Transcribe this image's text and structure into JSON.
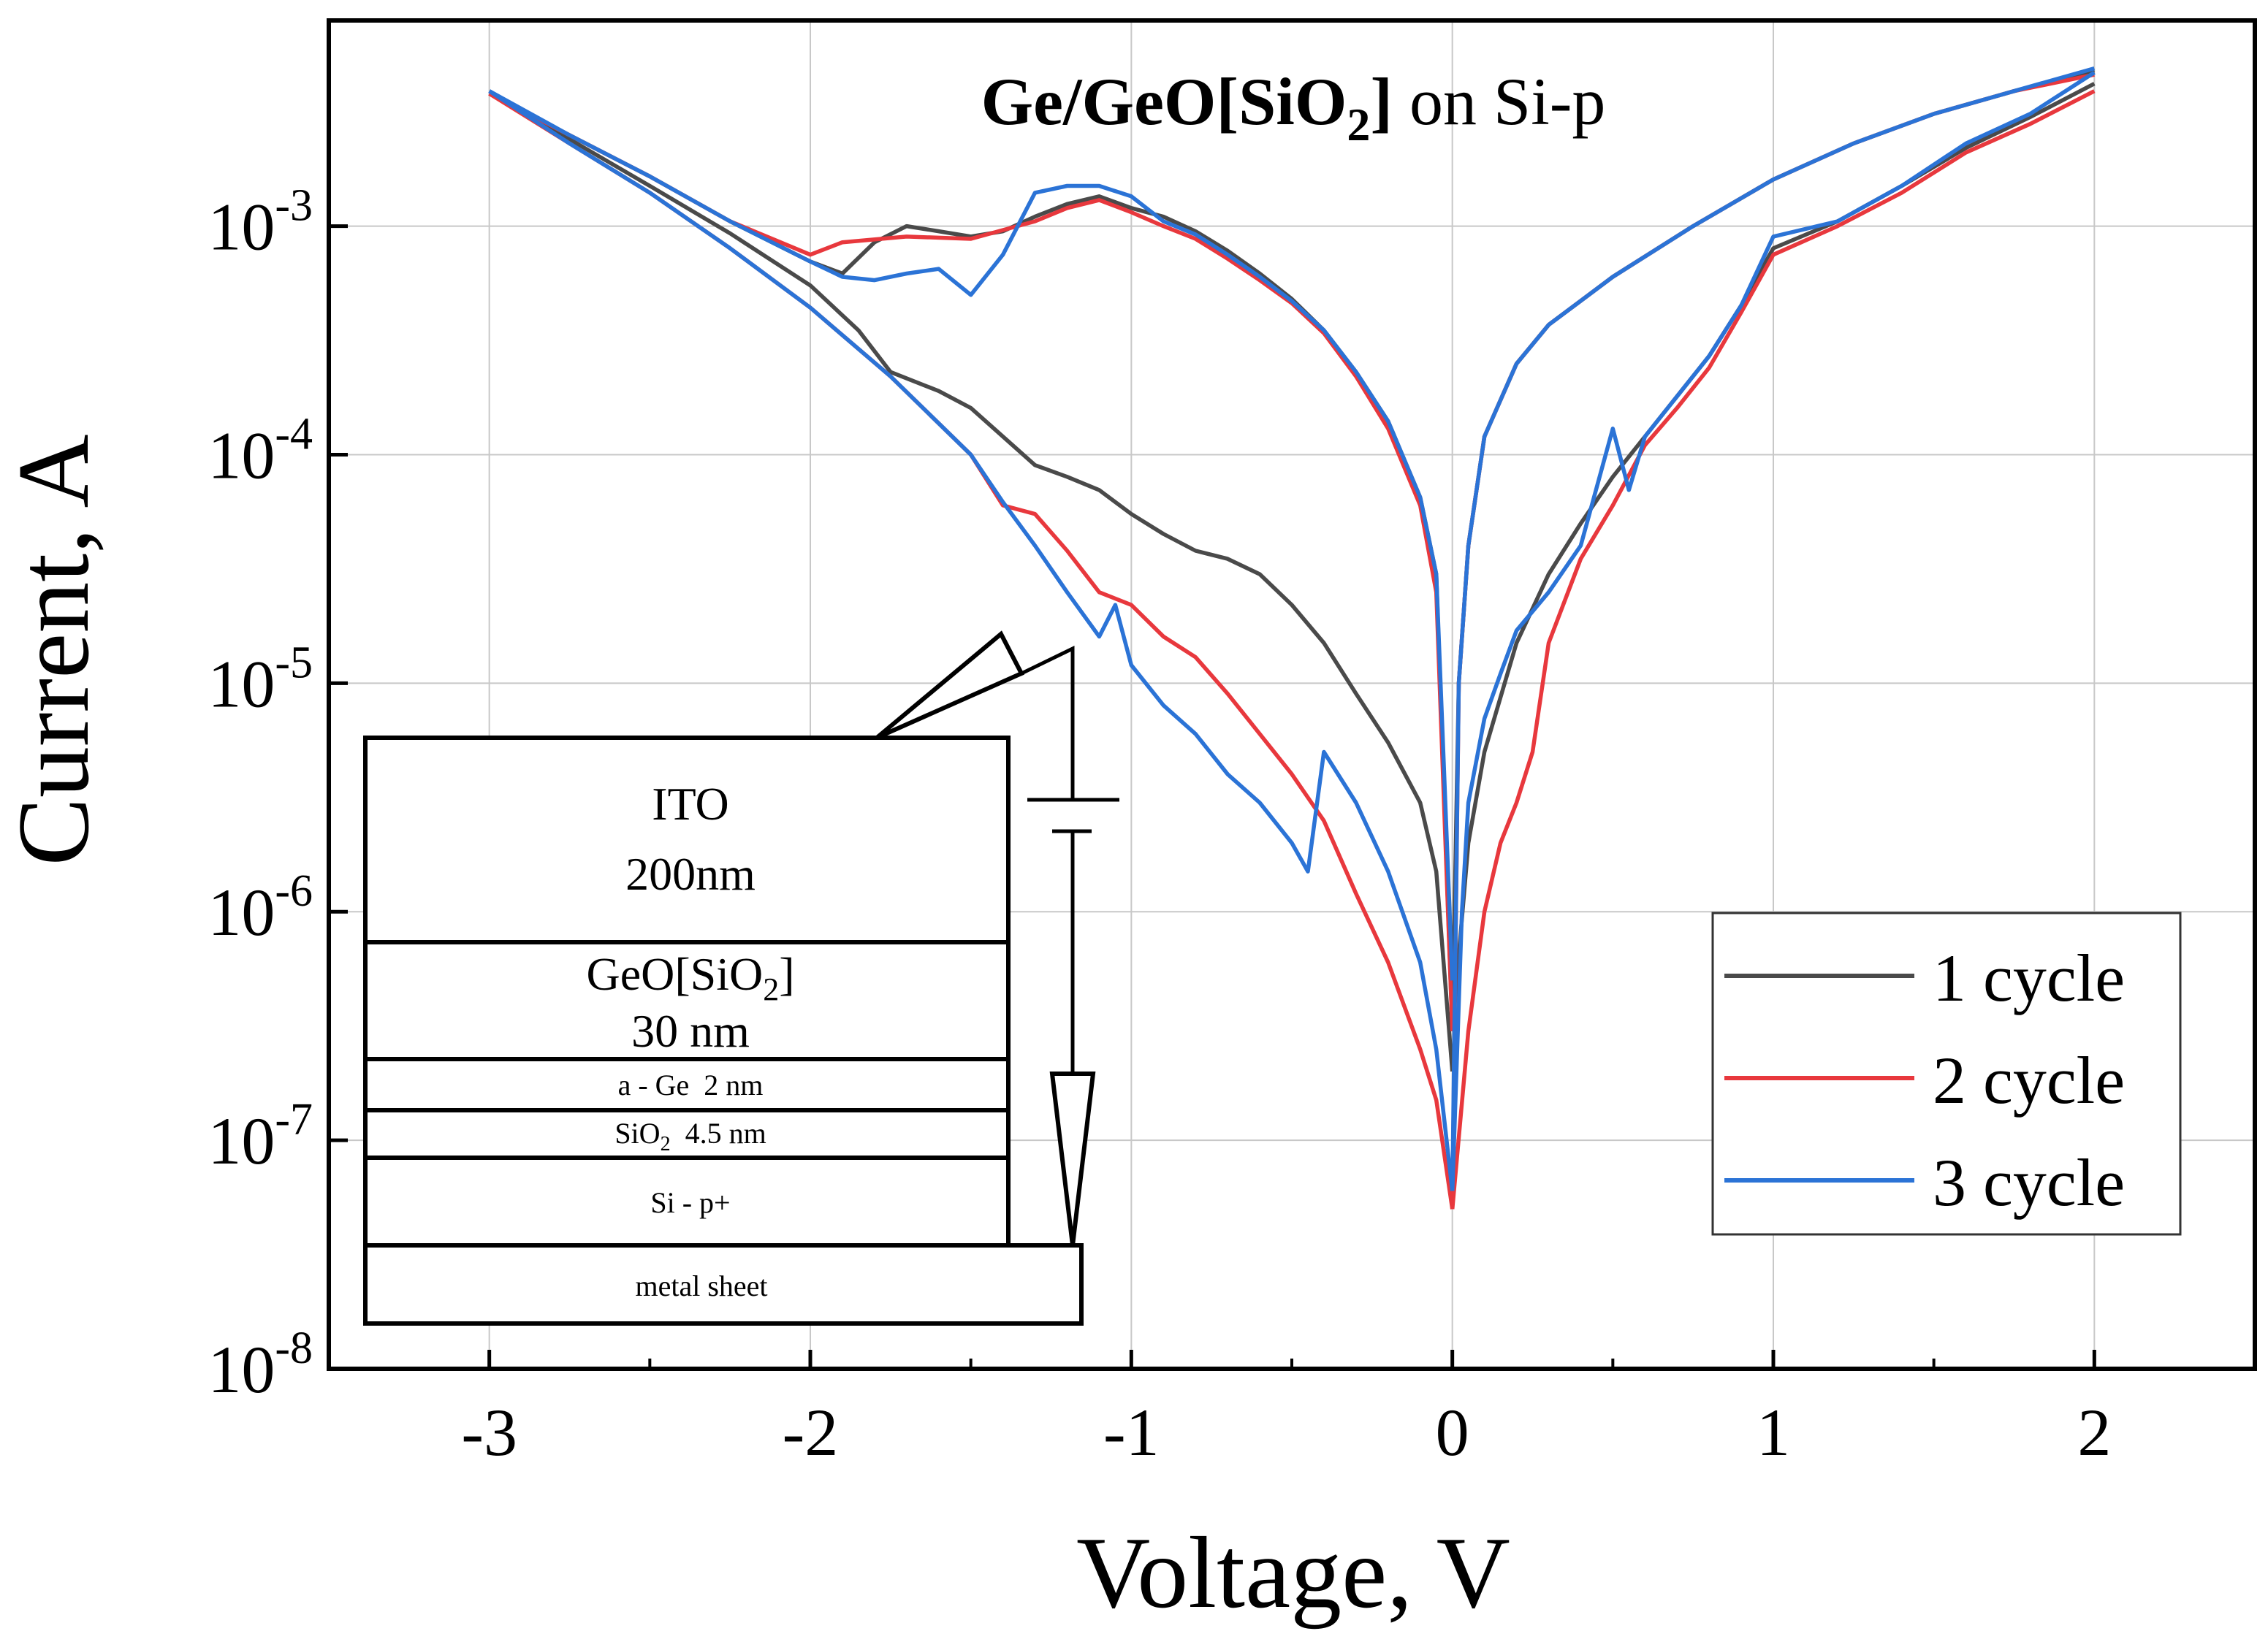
{
  "chart_data": {
    "type": "line",
    "title": "Ge/GeO[SiO2] on Si-p",
    "title_parts": {
      "bold_main": "Ge/GeO[SiO",
      "bold_sub": "2",
      "bold_close": "]",
      "normal": " on Si-p"
    },
    "xlabel": "Voltage, V",
    "ylabel": "Current, A",
    "xlim": [
      -3.5,
      2.5
    ],
    "ylim_log10": [
      -8,
      -2.1
    ],
    "y_scale": "log",
    "x_ticks": [
      -3,
      -2,
      -1,
      0,
      1,
      2
    ],
    "x_tick_labels": [
      "-3",
      "-2",
      "-1",
      "0",
      "1",
      "2"
    ],
    "y_ticks": [
      -8,
      -7,
      -6,
      -5,
      -4,
      -3
    ],
    "y_tick_labels": [
      {
        "base": "10",
        "exp": "-8"
      },
      {
        "base": "10",
        "exp": "-7"
      },
      {
        "base": "10",
        "exp": "-6"
      },
      {
        "base": "10",
        "exp": "-5"
      },
      {
        "base": "10",
        "exp": "-4"
      },
      {
        "base": "10",
        "exp": "-3"
      }
    ],
    "grid": true,
    "legend_position": "bottom-right",
    "series": [
      {
        "name": "1 cycle",
        "color": "#4a4a4a",
        "branches": [
          [
            [
              -3,
              0.0038
            ],
            [
              -2.75,
              0.0025
            ],
            [
              -2.5,
              0.00165
            ],
            [
              -2.25,
              0.00105
            ],
            [
              -2,
              0.0007
            ],
            [
              -1.9,
              0.00062
            ],
            [
              -1.8,
              0.00085
            ],
            [
              -1.7,
              0.001
            ],
            [
              -1.6,
              0.00095
            ],
            [
              -1.5,
              0.0009
            ],
            [
              -1.4,
              0.00095
            ],
            [
              -1.3,
              0.0011
            ],
            [
              -1.2,
              0.00125
            ],
            [
              -1.1,
              0.00135
            ],
            [
              -1,
              0.0012
            ],
            [
              -0.9,
              0.0011
            ],
            [
              -0.8,
              0.00095
            ],
            [
              -0.7,
              0.00078
            ],
            [
              -0.6,
              0.00062
            ],
            [
              -0.5,
              0.00048
            ],
            [
              -0.4,
              0.00035
            ],
            [
              -0.3,
              0.00023
            ],
            [
              -0.2,
              0.00014
            ],
            [
              -0.1,
              6.5e-05
            ],
            [
              -0.05,
              3e-05
            ],
            [
              0,
              3e-07
            ]
          ],
          [
            [
              -3,
              0.0038
            ],
            [
              -2.75,
              0.0024
            ],
            [
              -2.5,
              0.0015
            ],
            [
              -2.25,
              0.00093
            ],
            [
              -2,
              0.00055
            ],
            [
              -1.85,
              0.00035
            ],
            [
              -1.75,
              0.00023
            ],
            [
              -1.6,
              0.00019
            ],
            [
              -1.5,
              0.00016
            ],
            [
              -1.4,
              0.00012
            ],
            [
              -1.3,
              9e-05
            ],
            [
              -1.2,
              8e-05
            ],
            [
              -1.1,
              7e-05
            ],
            [
              -1,
              5.5e-05
            ],
            [
              -0.9,
              4.5e-05
            ],
            [
              -0.8,
              3.8e-05
            ],
            [
              -0.7,
              3.5e-05
            ],
            [
              -0.6,
              3e-05
            ],
            [
              -0.5,
              2.2e-05
            ],
            [
              -0.4,
              1.5e-05
            ],
            [
              -0.3,
              9e-06
            ],
            [
              -0.2,
              5.5e-06
            ],
            [
              -0.1,
              3e-06
            ],
            [
              -0.05,
              1.5e-06
            ],
            [
              0,
              2e-07
            ]
          ],
          [
            [
              0,
              3e-07
            ],
            [
              0.05,
              2e-06
            ],
            [
              0.1,
              5e-06
            ],
            [
              0.2,
              1.5e-05
            ],
            [
              0.3,
              3e-05
            ],
            [
              0.4,
              5e-05
            ],
            [
              0.5,
              8e-05
            ],
            [
              0.6,
              0.00012
            ],
            [
              0.7,
              0.00018
            ],
            [
              0.8,
              0.00027
            ],
            [
              0.9,
              0.00045
            ],
            [
              1,
              0.0008
            ],
            [
              1.2,
              0.00105
            ],
            [
              1.4,
              0.0015
            ],
            [
              1.6,
              0.0022
            ],
            [
              1.8,
              0.003
            ],
            [
              2,
              0.0042
            ]
          ],
          [
            [
              0,
              3e-07
            ],
            [
              0.02,
              1e-05
            ],
            [
              0.05,
              4e-05
            ],
            [
              0.1,
              0.00012
            ],
            [
              0.2,
              0.00025
            ],
            [
              0.3,
              0.00037
            ],
            [
              0.5,
              0.0006
            ],
            [
              0.75,
              0.001
            ],
            [
              1,
              0.0016
            ],
            [
              1.25,
              0.0023
            ],
            [
              1.5,
              0.0031
            ],
            [
              1.75,
              0.0039
            ],
            [
              2,
              0.0048
            ]
          ]
        ]
      },
      {
        "name": "2 cycle",
        "color": "#e8383d",
        "branches": [
          [
            [
              -3,
              0.0038
            ],
            [
              -2.75,
              0.0025
            ],
            [
              -2.5,
              0.00165
            ],
            [
              -2.25,
              0.00105
            ],
            [
              -2,
              0.00075
            ],
            [
              -1.9,
              0.00085
            ],
            [
              -1.7,
              0.0009
            ],
            [
              -1.5,
              0.00088
            ],
            [
              -1.3,
              0.00105
            ],
            [
              -1.2,
              0.0012
            ],
            [
              -1.1,
              0.0013
            ],
            [
              -1,
              0.00115
            ],
            [
              -0.9,
              0.001
            ],
            [
              -0.8,
              0.00088
            ],
            [
              -0.7,
              0.00072
            ],
            [
              -0.6,
              0.00058
            ],
            [
              -0.5,
              0.00046
            ],
            [
              -0.4,
              0.00034
            ],
            [
              -0.3,
              0.00022
            ],
            [
              -0.2,
              0.00013
            ],
            [
              -0.1,
              6e-05
            ],
            [
              -0.05,
              2.5e-05
            ],
            [
              0,
              3e-07
            ]
          ],
          [
            [
              -3,
              0.0038
            ],
            [
              -2.75,
              0.0023
            ],
            [
              -2.5,
              0.0014
            ],
            [
              -2.25,
              0.0008
            ],
            [
              -2,
              0.00044
            ],
            [
              -1.75,
              0.00022
            ],
            [
              -1.5,
              0.0001
            ],
            [
              -1.4,
              6e-05
            ],
            [
              -1.3,
              5.5e-05
            ],
            [
              -1.2,
              3.8e-05
            ],
            [
              -1.1,
              2.5e-05
            ],
            [
              -1,
              2.2e-05
            ],
            [
              -0.9,
              1.6e-05
            ],
            [
              -0.8,
              1.3e-05
            ],
            [
              -0.7,
              9e-06
            ],
            [
              -0.6,
              6e-06
            ],
            [
              -0.5,
              4e-06
            ],
            [
              -0.4,
              2.5e-06
            ],
            [
              -0.3,
              1.2e-06
            ],
            [
              -0.2,
              6e-07
            ],
            [
              -0.1,
              2.5e-07
            ],
            [
              -0.05,
              1.5e-07
            ],
            [
              0,
              5e-08
            ]
          ],
          [
            [
              0,
              5e-08
            ],
            [
              0.05,
              3e-07
            ],
            [
              0.1,
              1e-06
            ],
            [
              0.15,
              2e-06
            ],
            [
              0.2,
              3e-06
            ],
            [
              0.25,
              5e-06
            ],
            [
              0.3,
              1.5e-05
            ],
            [
              0.4,
              3.5e-05
            ],
            [
              0.5,
              6e-05
            ],
            [
              0.6,
              0.00011
            ],
            [
              0.7,
              0.00016
            ],
            [
              0.8,
              0.00024
            ],
            [
              0.9,
              0.00042
            ],
            [
              1,
              0.00075
            ],
            [
              1.2,
              0.001
            ],
            [
              1.4,
              0.0014
            ],
            [
              1.6,
              0.0021
            ],
            [
              1.8,
              0.0028
            ],
            [
              2,
              0.0039
            ]
          ],
          [
            [
              0,
              5e-08
            ],
            [
              0.02,
              1e-05
            ],
            [
              0.05,
              4e-05
            ],
            [
              0.1,
              0.00012
            ],
            [
              0.2,
              0.00025
            ],
            [
              0.3,
              0.00037
            ],
            [
              0.5,
              0.0006
            ],
            [
              0.75,
              0.001
            ],
            [
              1,
              0.0016
            ],
            [
              1.25,
              0.0023
            ],
            [
              1.5,
              0.0031
            ],
            [
              1.75,
              0.0039
            ],
            [
              2,
              0.0046
            ]
          ]
        ]
      },
      {
        "name": "3 cycle",
        "color": "#2b73d6",
        "branches": [
          [
            [
              -3,
              0.0039
            ],
            [
              -2.75,
              0.0025
            ],
            [
              -2.5,
              0.00165
            ],
            [
              -2.25,
              0.00105
            ],
            [
              -2,
              0.0007
            ],
            [
              -1.9,
              0.0006
            ],
            [
              -1.8,
              0.00058
            ],
            [
              -1.7,
              0.00062
            ],
            [
              -1.6,
              0.00065
            ],
            [
              -1.5,
              0.0005
            ],
            [
              -1.4,
              0.00075
            ],
            [
              -1.3,
              0.0014
            ],
            [
              -1.2,
              0.0015
            ],
            [
              -1.1,
              0.0015
            ],
            [
              -1,
              0.00135
            ],
            [
              -0.9,
              0.00105
            ],
            [
              -0.8,
              0.00092
            ],
            [
              -0.7,
              0.00075
            ],
            [
              -0.6,
              0.0006
            ],
            [
              -0.5,
              0.00047
            ],
            [
              -0.4,
              0.00035
            ],
            [
              -0.3,
              0.00023
            ],
            [
              -0.2,
              0.00014
            ],
            [
              -0.1,
              6.5e-05
            ],
            [
              -0.05,
              3e-05
            ],
            [
              0,
              5e-07
            ]
          ],
          [
            [
              -3,
              0.0039
            ],
            [
              -2.75,
              0.0023
            ],
            [
              -2.5,
              0.0014
            ],
            [
              -2.25,
              0.0008
            ],
            [
              -2,
              0.00044
            ],
            [
              -1.75,
              0.00022
            ],
            [
              -1.5,
              0.0001
            ],
            [
              -1.4,
              6.2e-05
            ],
            [
              -1.3,
              4e-05
            ],
            [
              -1.2,
              2.5e-05
            ],
            [
              -1.1,
              1.6e-05
            ],
            [
              -1.05,
              2.2e-05
            ],
            [
              -1,
              1.2e-05
            ],
            [
              -0.9,
              8e-06
            ],
            [
              -0.8,
              6e-06
            ],
            [
              -0.7,
              4e-06
            ],
            [
              -0.6,
              3e-06
            ],
            [
              -0.5,
              2e-06
            ],
            [
              -0.45,
              1.5e-06
            ],
            [
              -0.4,
              5e-06
            ],
            [
              -0.3,
              3e-06
            ],
            [
              -0.2,
              1.5e-06
            ],
            [
              -0.1,
              6e-07
            ],
            [
              -0.05,
              2.5e-07
            ],
            [
              0,
              6e-08
            ]
          ],
          [
            [
              0,
              6e-08
            ],
            [
              0.03,
              1e-06
            ],
            [
              0.05,
              3e-06
            ],
            [
              0.1,
              7e-06
            ],
            [
              0.15,
              1.1e-05
            ],
            [
              0.2,
              1.7e-05
            ],
            [
              0.3,
              2.5e-05
            ],
            [
              0.4,
              4e-05
            ],
            [
              0.5,
              0.00013
            ],
            [
              0.55,
              7e-05
            ],
            [
              0.6,
              0.00012
            ],
            [
              0.7,
              0.00018
            ],
            [
              0.8,
              0.00027
            ],
            [
              0.9,
              0.00045
            ],
            [
              1,
              0.0009
            ],
            [
              1.2,
              0.00105
            ],
            [
              1.4,
              0.0015
            ],
            [
              1.6,
              0.0023
            ],
            [
              1.8,
              0.0031
            ],
            [
              2,
              0.0047
            ]
          ],
          [
            [
              0,
              6e-08
            ],
            [
              0.02,
              1e-05
            ],
            [
              0.05,
              4e-05
            ],
            [
              0.1,
              0.00012
            ],
            [
              0.2,
              0.00025
            ],
            [
              0.3,
              0.00037
            ],
            [
              0.5,
              0.0006
            ],
            [
              0.75,
              0.001
            ],
            [
              1,
              0.0016
            ],
            [
              1.25,
              0.0023
            ],
            [
              1.5,
              0.0031
            ],
            [
              1.75,
              0.0039
            ],
            [
              2,
              0.0049
            ]
          ]
        ]
      }
    ]
  },
  "inset": {
    "layers": [
      {
        "label": "ITO",
        "label2": "200nm"
      },
      {
        "label": "GeO[SiO",
        "sub": "2",
        "close": "]",
        "label2": "30 nm"
      },
      {
        "label": "a - Ge  2 nm"
      },
      {
        "label": "SiO",
        "sub": "2",
        "close": "  4.5 nm"
      },
      {
        "label": "Si - p+"
      },
      {
        "label": "metal sheet"
      }
    ]
  }
}
